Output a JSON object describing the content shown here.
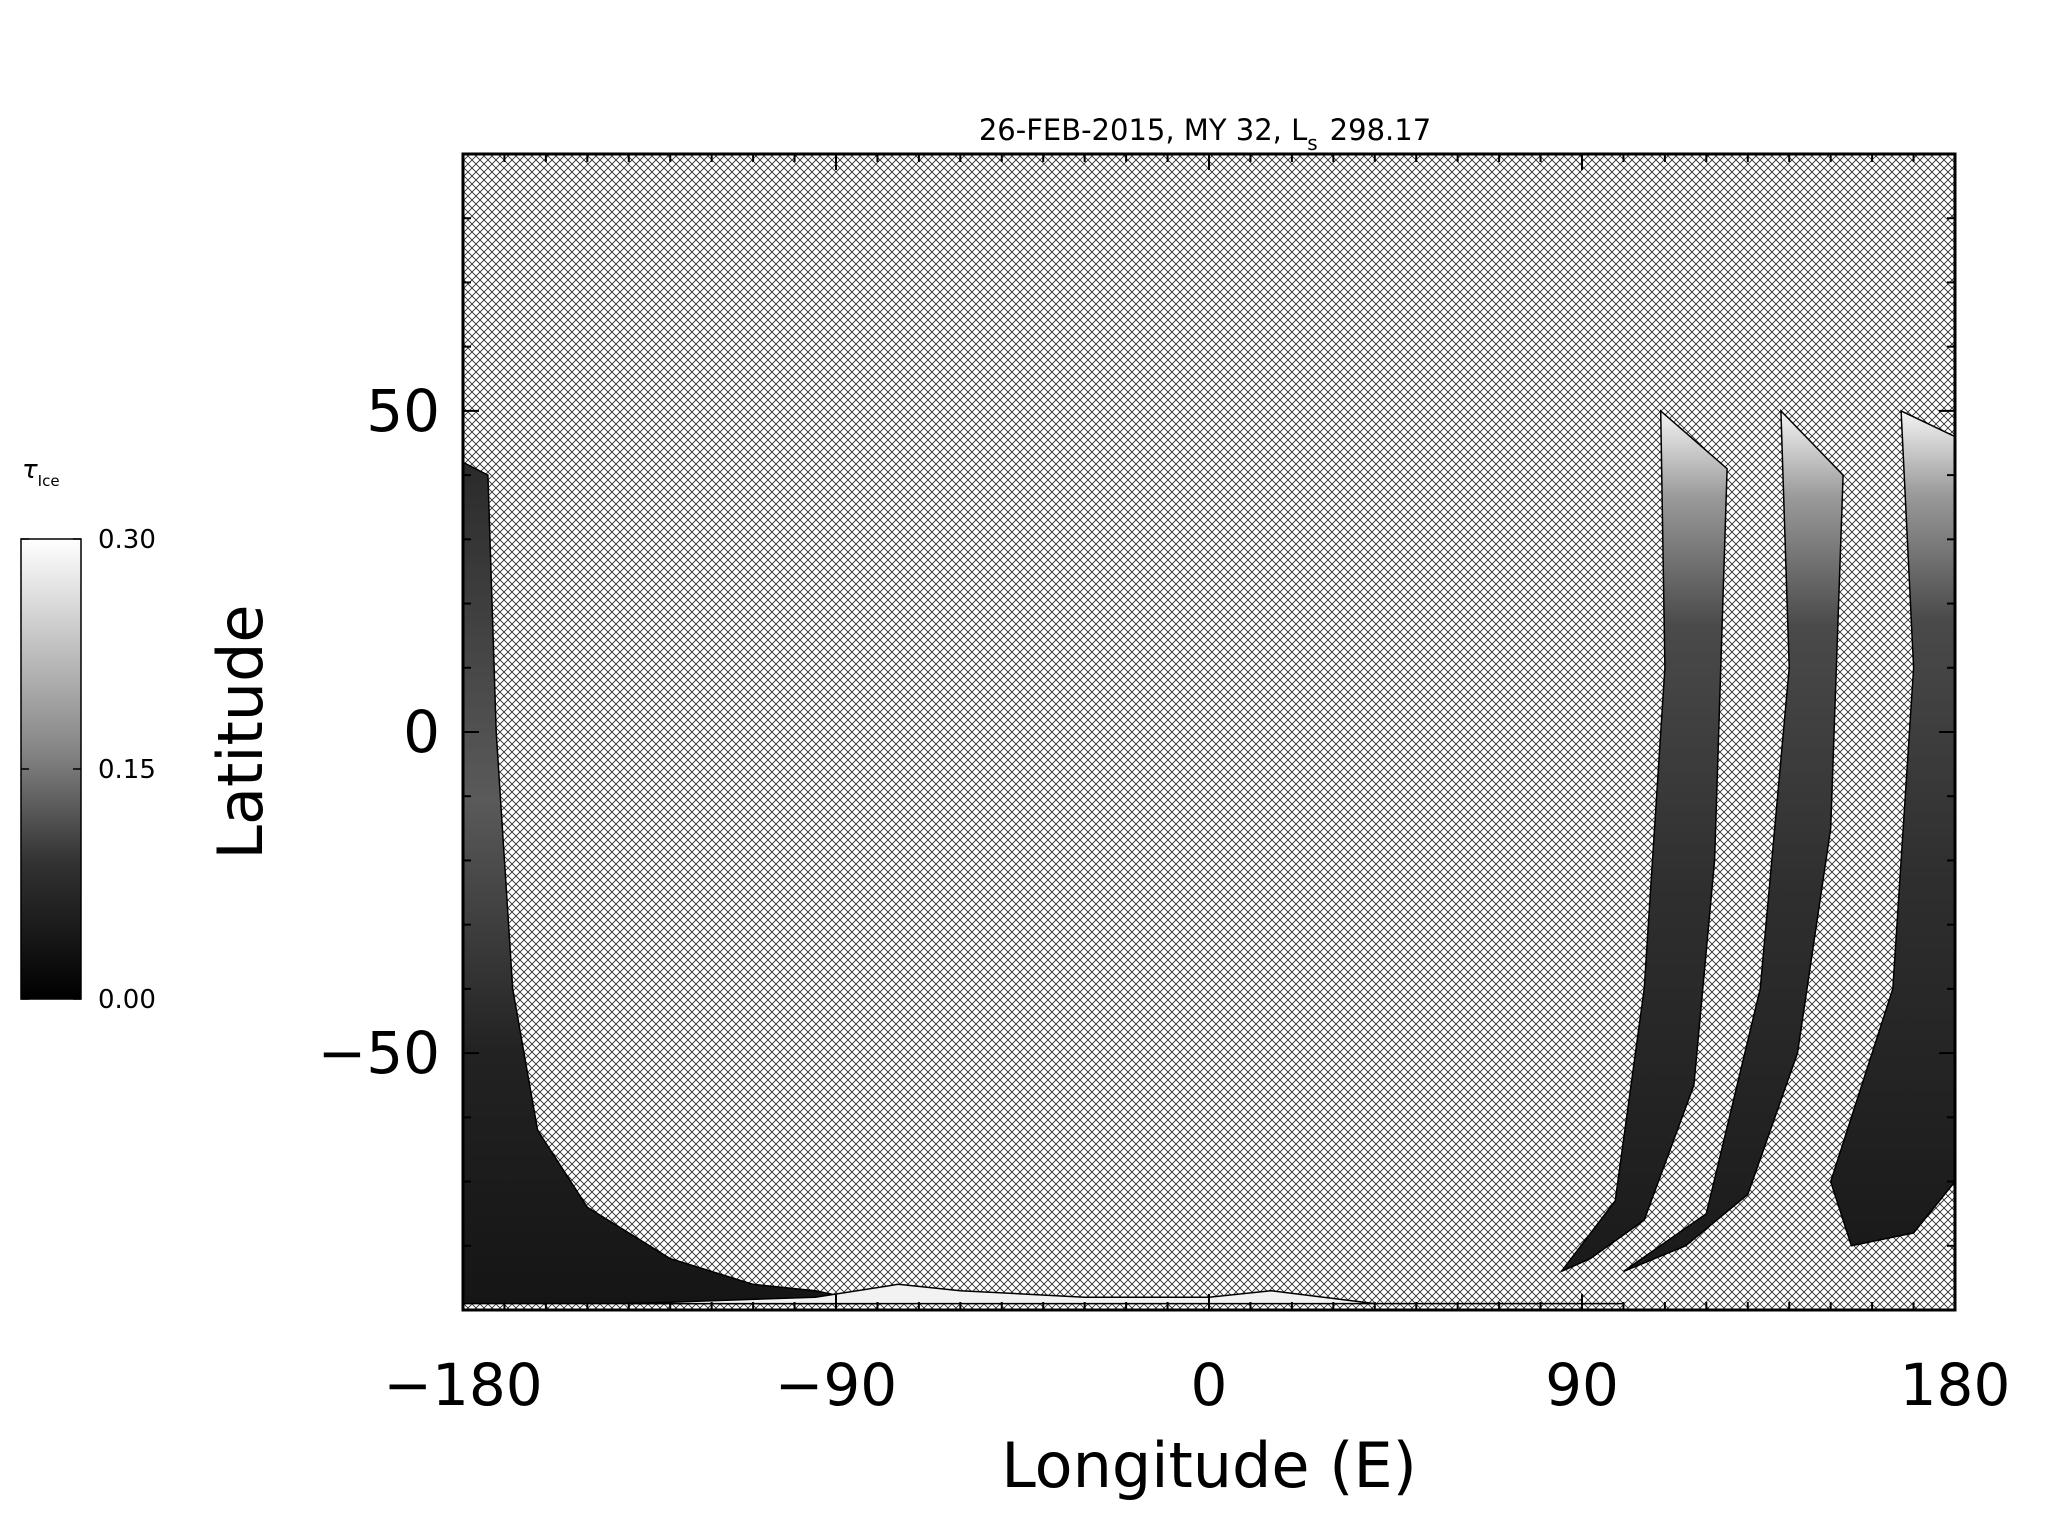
{
  "chart_data": {
    "type": "heatmap",
    "title": "26-FEB-2015, MY 32,  L",
    "title_subscript": "s",
    "title_value": "298.17",
    "xlabel": "Longitude (E)",
    "ylabel": "Latitude",
    "xlim": [
      -180,
      180
    ],
    "ylim": [
      -90,
      90
    ],
    "x_ticks": [
      -180,
      -90,
      0,
      90,
      180
    ],
    "x_tick_labels": [
      "−180",
      "−90",
      "0",
      "90",
      "180"
    ],
    "y_ticks": [
      -50,
      0,
      50
    ],
    "y_tick_labels": [
      "−50",
      "0",
      "50"
    ],
    "x_minor_step": 10,
    "y_minor_step": 10,
    "grid": false,
    "no_data_pattern": "cross-hatch",
    "colorbar": {
      "label": "τ",
      "label_subscript": "Ice",
      "min": 0.0,
      "max": 0.3,
      "ticks": [
        0.0,
        0.15,
        0.3
      ],
      "tick_labels": [
        "0.00",
        "0.15",
        "0.30"
      ],
      "colormap": "grayscale",
      "color_min": "#000000",
      "color_max": "#ffffff"
    },
    "swaths": [
      {
        "name": "swath-west-limb",
        "outline_lon": [
          -180,
          -174,
          -172,
          -168,
          -162,
          -150,
          -130,
          -110,
          -95,
          -80,
          -180
        ],
        "outline_lat": [
          42,
          40,
          0,
          -40,
          -62,
          -74,
          -82,
          -86,
          -87,
          -89,
          -89
        ]
      },
      {
        "name": "swath-1",
        "outline_lon": [
          109,
          125,
          122,
          117,
          105,
          92,
          85,
          98,
          105,
          110
        ],
        "outline_lat": [
          50,
          41,
          -20,
          -55,
          -76,
          -82,
          -84,
          -73,
          -40,
          10
        ]
      },
      {
        "name": "swath-2",
        "outline_lon": [
          138,
          153,
          150,
          142,
          130,
          115,
          100,
          120,
          133,
          140
        ],
        "outline_lat": [
          50,
          40,
          -15,
          -50,
          -72,
          -80,
          -84,
          -75,
          -40,
          10
        ]
      },
      {
        "name": "swath-3",
        "outline_lon": [
          167,
          180,
          180,
          170,
          155,
          150,
          165,
          170
        ],
        "outline_lat": [
          50,
          46,
          -70,
          -78,
          -80,
          -70,
          -40,
          10
        ]
      },
      {
        "name": "south-polar-bright",
        "outline_lon": [
          -140,
          -95,
          -75,
          -60,
          -30,
          0,
          15,
          40,
          70,
          100,
          -140
        ],
        "outline_lat": [
          -89,
          -88,
          -86,
          -87,
          -88,
          -88,
          -87,
          -89,
          -89,
          -89,
          -89
        ]
      }
    ],
    "south_polar_bright_value": 0.3,
    "typical_swath_value": 0.05,
    "swath_top_value": 0.3
  }
}
